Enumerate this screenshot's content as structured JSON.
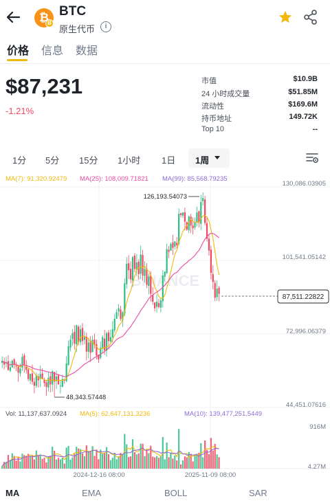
{
  "header": {
    "coin_symbol": "BTC",
    "coin_type": "原生代币",
    "logo_glyph": "₿",
    "logo_sub_glyph": "B",
    "info_glyph": "i"
  },
  "tabs": [
    {
      "label": "价格",
      "active": true
    },
    {
      "label": "信息",
      "active": false
    },
    {
      "label": "数据",
      "active": false
    }
  ],
  "price": {
    "value": "$87,231",
    "change": "-1.21%"
  },
  "stats": [
    {
      "label": "市值",
      "value": "$10.9B"
    },
    {
      "label": "24 小时成交量",
      "value": "$51.85M"
    },
    {
      "label": "流动性",
      "value": "$169.6M"
    },
    {
      "label": "持币地址",
      "value": "149.72K"
    },
    {
      "label": "Top 10",
      "value": "--"
    }
  ],
  "intervals": [
    "1分",
    "5分",
    "15分",
    "1小时",
    "1日",
    "1周"
  ],
  "active_interval": "1周",
  "indicators": {
    "ma7": "MA(7): 91,320.92479",
    "ma25": "MA(25): 108,009.71821",
    "ma99": "MA(99): 85,568.79235",
    "volume": "Vol: 11,137,637.0924",
    "vma5": "MA(5): 62,647,131.3236",
    "vma10": "MA(10): 139,477,251.5449"
  },
  "price_axis": [
    "130,086.03905",
    "101,541.05142",
    "72,996.06379",
    "44,451.07616"
  ],
  "volume_axis": [
    "916M",
    "4.27M"
  ],
  "current_price_label": "87,511.22822",
  "high_label": "126,193.54073",
  "low_label": "48,343.57448",
  "watermark": "BINANCE",
  "time_axis": [
    "2024-12-16 08:00",
    "2025-11-09 08:00"
  ],
  "bottom_tabs": [
    {
      "label": "MA",
      "active": true
    },
    {
      "label": "EMA",
      "active": false
    },
    {
      "label": "BOLL",
      "active": false
    },
    {
      "label": "SAR",
      "active": false
    }
  ],
  "colors": {
    "up": "#2ebd85",
    "down": "#f6465d",
    "ma7": "#f0b90b",
    "ma25": "#e94ba6",
    "ma99": "#8e6bd8",
    "accent": "#f0b90b"
  },
  "chart_data": {
    "type": "candlestick",
    "ylim": [
      44451.07616,
      130086.03905
    ],
    "high": 126193.54073,
    "low": 48343.57448,
    "last": 87511.22822,
    "closes": [
      62000,
      60500,
      61500,
      58500,
      59500,
      62000,
      60500,
      60000,
      57500,
      59000,
      63500,
      60500,
      58500,
      55000,
      57000,
      54000,
      52500,
      56500,
      54500,
      57000,
      55000,
      53500,
      52000,
      55500,
      53000,
      58000,
      54000,
      56000,
      53000,
      52500,
      55000,
      54500,
      61000,
      67500,
      70000,
      72500,
      68500,
      75500,
      69000,
      74000,
      69500,
      71000,
      65500,
      69000,
      65000,
      70000,
      68000,
      64000,
      62500,
      67000,
      71000,
      66000,
      72500,
      69500,
      71000,
      74000,
      78000,
      80500,
      82000,
      78000,
      80500,
      91500,
      99000,
      96500,
      93000,
      101500,
      97000,
      99500,
      95000,
      102500,
      94500,
      97000,
      91000,
      94000,
      87500,
      84500,
      82000,
      84500,
      82500,
      85000,
      94500,
      96000,
      104500,
      103500,
      106500,
      105000,
      107500,
      106000,
      118000,
      117500,
      118500,
      115000,
      112000,
      117000,
      113500,
      112500,
      115000,
      118500,
      114500,
      122500,
      124000,
      114500,
      108500,
      104000,
      95500,
      92000,
      86000,
      89500,
      87511
    ],
    "ma_lines": [
      "MA(7)",
      "MA(25)",
      "MA(99)"
    ]
  }
}
